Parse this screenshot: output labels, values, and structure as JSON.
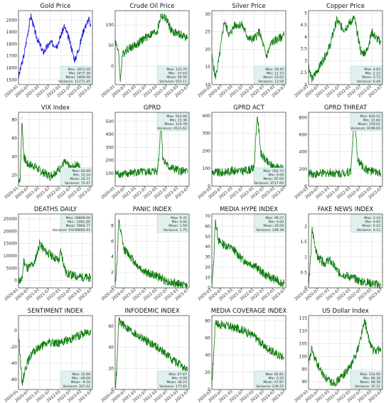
{
  "figure": {
    "background": "#ffffff"
  },
  "colors": {
    "gold": "#1a1adb",
    "others": "#0a7a0a",
    "stats_box_fill": "#dff0ee",
    "stats_box_edge": "#8fc6bf"
  },
  "chart_data": [
    {
      "type": "line",
      "title": "Gold Price",
      "color": "#1a1adb",
      "x": [
        "2020-01",
        "2020-04",
        "2020-08",
        "2020-11",
        "2021-03",
        "2021-07",
        "2021-11",
        "2022-03",
        "2022-06",
        "2022-09",
        "2022-12",
        "2023-02",
        "2023-05",
        "2023-06"
      ],
      "values": [
        1520,
        1700,
        2040,
        1870,
        1730,
        1810,
        1790,
        1950,
        1830,
        1660,
        1800,
        1920,
        2010,
        1950
      ],
      "ylim": [
        1460,
        2080
      ],
      "yticks": [
        1500,
        1600,
        1700,
        1800,
        1900,
        2000
      ],
      "xticks": [
        "2020-01",
        "2020-07",
        "2021-01",
        "2021-07",
        "2022-01",
        "2022-07",
        "2023-01",
        "2023-07"
      ],
      "stats": [
        "Max: 2051.50",
        "Min: 1477.30",
        "Mean: 1809.00",
        "Variance: 11771.45"
      ]
    },
    {
      "type": "line",
      "title": "Crude Oil Price",
      "color": "#0a7a0a",
      "x": [
        "2020-01",
        "2020-02",
        "2020-03",
        "2020-04",
        "2020-05",
        "2020-07",
        "2021-01",
        "2021-07",
        "2022-01",
        "2022-03",
        "2022-06",
        "2022-09",
        "2023-01",
        "2023-06"
      ],
      "values": [
        60,
        52,
        28,
        -37,
        25,
        40,
        52,
        72,
        85,
        123,
        115,
        85,
        78,
        70
      ],
      "ylim": [
        -45,
        135
      ],
      "yticks": [
        0,
        50,
        100
      ],
      "xticks": [
        "2020-01",
        "2020-07",
        "2021-01",
        "2021-07",
        "2022-01",
        "2022-07",
        "2023-01",
        "2023-07"
      ],
      "stats": [
        "Max: 123.70",
        "Min: -37.63",
        "Mean: 66.56",
        "Variance: 553.11"
      ]
    },
    {
      "type": "line",
      "title": "Silver Price",
      "color": "#0a7a0a",
      "x": [
        "2020-01",
        "2020-03",
        "2020-05",
        "2020-08",
        "2020-11",
        "2021-02",
        "2021-06",
        "2021-10",
        "2022-01",
        "2022-04",
        "2022-08",
        "2022-11",
        "2023-03",
        "2023-06"
      ],
      "values": [
        18,
        12,
        17,
        28,
        24,
        27,
        27,
        23,
        23,
        25,
        18,
        22,
        23,
        24
      ],
      "ylim": [
        10,
        31
      ],
      "yticks": [
        10,
        15,
        20,
        25,
        30
      ],
      "xticks": [
        "2020-01",
        "2020-07",
        "2021-01",
        "2021-07",
        "2022-01",
        "2022-07",
        "2023-01",
        "2023-07"
      ],
      "stats": [
        "Max: 29.40",
        "Min: 11.73",
        "Mean: 22.62",
        "Variance: 13.58"
      ]
    },
    {
      "type": "line",
      "title": "Copper Price",
      "color": "#0a7a0a",
      "x": [
        "2020-01",
        "2020-03",
        "2020-06",
        "2020-09",
        "2021-01",
        "2021-05",
        "2021-09",
        "2022-03",
        "2022-07",
        "2022-10",
        "2023-01",
        "2023-04",
        "2023-06"
      ],
      "values": [
        2.8,
        2.2,
        2.6,
        3.0,
        3.6,
        4.7,
        4.3,
        4.8,
        3.3,
        3.4,
        4.2,
        3.9,
        3.8
      ],
      "ylim": [
        2.0,
        5.1
      ],
      "yticks": [
        2.0,
        2.5,
        3.0,
        3.5,
        4.0,
        4.5,
        5.0
      ],
      "xticks": [
        "2020-01",
        "2020-07",
        "2021-01",
        "2021-07",
        "2022-01",
        "2022-07",
        "2023-01",
        "2023-07"
      ],
      "stats": [
        "Max: 4.93",
        "Min: 2.12",
        "Mean: 3.72",
        "Variance: 0.49"
      ]
    },
    {
      "type": "line",
      "title": "VIX Index",
      "color": "#0a7a0a",
      "x": [
        "2020-01",
        "2020-02",
        "2020-03",
        "2020-04",
        "2020-06",
        "2020-10",
        "2021-01",
        "2021-07",
        "2022-01",
        "2022-03",
        "2022-07",
        "2022-10",
        "2023-03",
        "2023-06"
      ],
      "values": [
        14,
        17,
        82,
        40,
        32,
        30,
        25,
        19,
        28,
        34,
        27,
        32,
        22,
        15
      ],
      "ylim": [
        8,
        88
      ],
      "yticks": [
        20,
        40,
        60,
        80
      ],
      "xticks": [
        "2020-01",
        "2020-07",
        "2021-01",
        "2021-07",
        "2022-01",
        "2022-07",
        "2023-01",
        "2023-07"
      ],
      "stats": [
        "Max: 82.69",
        "Min: 12.10",
        "Mean: 24.21",
        "Variance: 70.47"
      ]
    },
    {
      "type": "line",
      "title": "GPRD",
      "color": "#0a7a0a",
      "x": [
        "2020-01",
        "2020-06",
        "2021-01",
        "2021-06",
        "2022-01",
        "2022-02",
        "2022-03",
        "2022-04",
        "2022-07",
        "2023-01",
        "2023-06"
      ],
      "values": [
        100,
        90,
        110,
        105,
        120,
        250,
        542,
        220,
        150,
        120,
        110
      ],
      "ylim": [
        0,
        570
      ],
      "yticks": [
        100,
        200,
        300,
        400,
        500
      ],
      "xticks": [
        "2020-01",
        "2020-07",
        "2021-01",
        "2021-07",
        "2022-01",
        "2022-07",
        "2023-01",
        "2023-07"
      ],
      "stats": [
        "Max: 542.68",
        "Min: 23.36",
        "Mean: 119.78",
        "Variance: 4521.61"
      ]
    },
    {
      "type": "line",
      "title": "GPRD ACT",
      "color": "#0a7a0a",
      "x": [
        "2020-01",
        "2020-06",
        "2021-01",
        "2021-06",
        "2022-01",
        "2022-02",
        "2022-03",
        "2022-05",
        "2022-09",
        "2023-01",
        "2023-06"
      ],
      "values": [
        80,
        75,
        90,
        85,
        100,
        300,
        393,
        180,
        130,
        110,
        100
      ],
      "ylim": [
        0,
        420
      ],
      "yticks": [
        0,
        100,
        200,
        300,
        400
      ],
      "xticks": [
        "2020-01",
        "2020-07",
        "2021-01",
        "2021-07",
        "2022-01",
        "2022-07",
        "2023-01",
        "2023-07"
      ],
      "stats": [
        "Max: 393.73",
        "Min: 0.00",
        "Mean: 87.00",
        "Variance: 3717.60"
      ]
    },
    {
      "type": "line",
      "title": "GPRD THREAT",
      "color": "#0a7a0a",
      "x": [
        "2020-01",
        "2020-06",
        "2021-01",
        "2021-06",
        "2022-01",
        "2022-02",
        "2022-03",
        "2022-05",
        "2022-09",
        "2023-01",
        "2023-06"
      ],
      "values": [
        150,
        140,
        160,
        150,
        170,
        500,
        816,
        300,
        200,
        170,
        150
      ],
      "ylim": [
        0,
        860
      ],
      "yticks": [
        0,
        200,
        400,
        600,
        800
      ],
      "xticks": [
        "2020-01",
        "2020-07",
        "2021-01",
        "2021-07",
        "2022-01",
        "2022-07",
        "2023-01",
        "2023-07"
      ],
      "stats": [
        "Max: 816.15",
        "Min: 22.64",
        "Mean: 150.01",
        "Variance: 9199.95"
      ]
    },
    {
      "type": "line",
      "title": "DEATHS DAILY",
      "color": "#0a7a0a",
      "x": [
        "2020-01",
        "2020-03",
        "2020-04",
        "2020-06",
        "2020-10",
        "2021-01",
        "2021-04",
        "2021-08",
        "2021-12",
        "2022-01",
        "2022-04",
        "2022-08",
        "2022-12",
        "2023-06"
      ],
      "values": [
        0,
        100,
        8000,
        5000,
        7000,
        15000,
        12000,
        10000,
        8000,
        12000,
        3000,
        2000,
        1500,
        1000
      ],
      "ylim": [
        -3000,
        27000
      ],
      "yticks": [
        0,
        5000,
        10000,
        15000,
        20000,
        25000
      ],
      "xticks": [
        "2020-01",
        "2020-07",
        "2021-01",
        "2021-07",
        "2022-01",
        "2022-07",
        "2023-01",
        "2023-07"
      ],
      "stats": [
        "Max: 26809.00",
        "Min: -1991.00",
        "Mean: 5964.77",
        "Variance: 19194865.91"
      ]
    },
    {
      "type": "line",
      "title": "PANIC INDEX",
      "color": "#0a7a0a",
      "x": [
        "2020-01",
        "2020-02",
        "2020-03",
        "2020-06",
        "2020-10",
        "2021-01",
        "2021-06",
        "2022-01",
        "2022-07",
        "2023-01",
        "2023-06"
      ],
      "values": [
        0.5,
        3,
        8.5,
        5,
        4,
        3,
        2,
        1.5,
        0.8,
        0.5,
        0.3
      ],
      "ylim": [
        0,
        9.5
      ],
      "yticks": [
        0,
        2,
        4,
        6,
        8
      ],
      "xticks": [
        "2020-01",
        "2020-07",
        "2021-01",
        "2021-07",
        "2022-01",
        "2022-07",
        "2023-01",
        "2023-07"
      ],
      "stats": [
        "Max: 9.31",
        "Min: 0.00",
        "Mean: 1.59",
        "Variance: 1.75"
      ]
    },
    {
      "type": "line",
      "title": "MEDIA HYPE INDEX",
      "color": "#0a7a0a",
      "x": [
        "2020-01",
        "2020-02",
        "2020-03",
        "2020-05",
        "2020-08",
        "2021-01",
        "2021-06",
        "2022-01",
        "2022-07",
        "2023-01",
        "2023-06"
      ],
      "values": [
        1,
        25,
        65,
        45,
        42,
        38,
        28,
        22,
        13,
        8,
        4
      ],
      "ylim": [
        0,
        72
      ],
      "yticks": [
        0,
        10,
        20,
        30,
        40,
        50,
        60,
        70
      ],
      "xticks": [
        "2020-01",
        "2020-07",
        "2021-01",
        "2021-07",
        "2022-01",
        "2022-07",
        "2023-01",
        "2023-07"
      ],
      "stats": [
        "Max: 69.27",
        "Min: 0.00",
        "Mean: 20.09",
        "Variance: 199.39"
      ]
    },
    {
      "type": "line",
      "title": "FAKE NEWS INDEX",
      "color": "#0a7a0a",
      "x": [
        "2020-01",
        "2020-02",
        "2020-03",
        "2020-06",
        "2020-10",
        "2021-01",
        "2021-06",
        "2022-01",
        "2022-07",
        "2023-01",
        "2023-06"
      ],
      "values": [
        0.05,
        0.8,
        1.9,
        1.0,
        0.8,
        0.9,
        0.5,
        0.35,
        0.2,
        0.15,
        0.1
      ],
      "ylim": [
        0,
        2.4
      ],
      "yticks": [
        0.0,
        0.5,
        1.0,
        1.5,
        2.0
      ],
      "xticks": [
        "2020-01",
        "2020-07",
        "2021-01",
        "2021-07",
        "2022-01",
        "2022-07",
        "2023-01",
        "2023-07"
      ],
      "stats": [
        "Max: 2.24",
        "Min: 0.00",
        "Mean: 0.42",
        "Variance: 0.11"
      ]
    },
    {
      "type": "line",
      "title": "SENTIMENT INDEX",
      "color": "#0a7a0a",
      "x": [
        "2020-01",
        "2020-02",
        "2020-03",
        "2020-05",
        "2020-08",
        "2021-01",
        "2021-06",
        "2022-01",
        "2022-07",
        "2023-01",
        "2023-06"
      ],
      "values": [
        -5,
        -30,
        -65,
        -45,
        -30,
        -20,
        -15,
        -15,
        -10,
        -5,
        0
      ],
      "ylim": [
        -72,
        18
      ],
      "yticks": [
        -60,
        -40,
        -20,
        0
      ],
      "xticks": [
        "2020-01",
        "2020-07",
        "2021-01",
        "2021-07",
        "2022-01",
        "2022-07",
        "2023-01",
        "2023-07"
      ],
      "stats": [
        "Max: 15.66",
        "Min: -69.00",
        "Mean: -9.16",
        "Variance: 357.02"
      ]
    },
    {
      "type": "line",
      "title": "INFODEMIC INDEX",
      "color": "#0a7a0a",
      "x": [
        "2020-01",
        "2020-02",
        "2020-03",
        "2020-05",
        "2020-08",
        "2021-01",
        "2021-06",
        "2022-01",
        "2022-07",
        "2023-01",
        "2023-06"
      ],
      "values": [
        2,
        20,
        65,
        62,
        58,
        52,
        47,
        40,
        32,
        24,
        18
      ],
      "ylim": [
        0,
        70
      ],
      "yticks": [
        0,
        20,
        40,
        60
      ],
      "xticks": [
        "2020-01",
        "2020-07",
        "2021-01",
        "2021-07",
        "2022-01",
        "2022-07",
        "2023-01",
        "2023-07"
      ],
      "stats": [
        "Max: 67.67",
        "Min: 0.08",
        "Mean: 38.23",
        "Variance: 177.65"
      ]
    },
    {
      "type": "line",
      "title": "MEDIA COVERAGE INDEX",
      "color": "#0a7a0a",
      "x": [
        "2020-01",
        "2020-02",
        "2020-03",
        "2020-05",
        "2020-08",
        "2021-01",
        "2021-06",
        "2022-01",
        "2022-07",
        "2023-01",
        "2023-06"
      ],
      "values": [
        5,
        40,
        80,
        75,
        75,
        72,
        70,
        62,
        50,
        42,
        37
      ],
      "ylim": [
        0,
        86
      ],
      "yticks": [
        0,
        20,
        40,
        60,
        80
      ],
      "xticks": [
        "2020-01",
        "2020-07",
        "2021-01",
        "2021-07",
        "2022-01",
        "2022-07",
        "2023-01",
        "2023-07"
      ],
      "stats": [
        "Max: 82.81",
        "Min: 0.20",
        "Mean: 57.87",
        "Variance: 236.55"
      ]
    },
    {
      "type": "line",
      "title": "US Dollar Index",
      "color": "#0a7a0a",
      "x": [
        "2020-01",
        "2020-03",
        "2020-04",
        "2020-06",
        "2020-09",
        "2021-01",
        "2021-05",
        "2021-09",
        "2022-01",
        "2022-05",
        "2022-09",
        "2022-11",
        "2023-02",
        "2023-06"
      ],
      "values": [
        97,
        103,
        100,
        97,
        93,
        90,
        90,
        93,
        96,
        103,
        114,
        107,
        102,
        103
      ],
      "ylim": [
        87,
        116
      ],
      "yticks": [
        90,
        95,
        100,
        105,
        110,
        115
      ],
      "xticks": [
        "2020-01",
        "2020-07",
        "2021-01",
        "2021-07",
        "2022-01",
        "2022-07",
        "2023-01",
        "2023-07"
      ],
      "stats": [
        "Max: 114.05",
        "Min: 89.39",
        "Mean: 98.39",
        "Variance: 35.11"
      ]
    }
  ]
}
